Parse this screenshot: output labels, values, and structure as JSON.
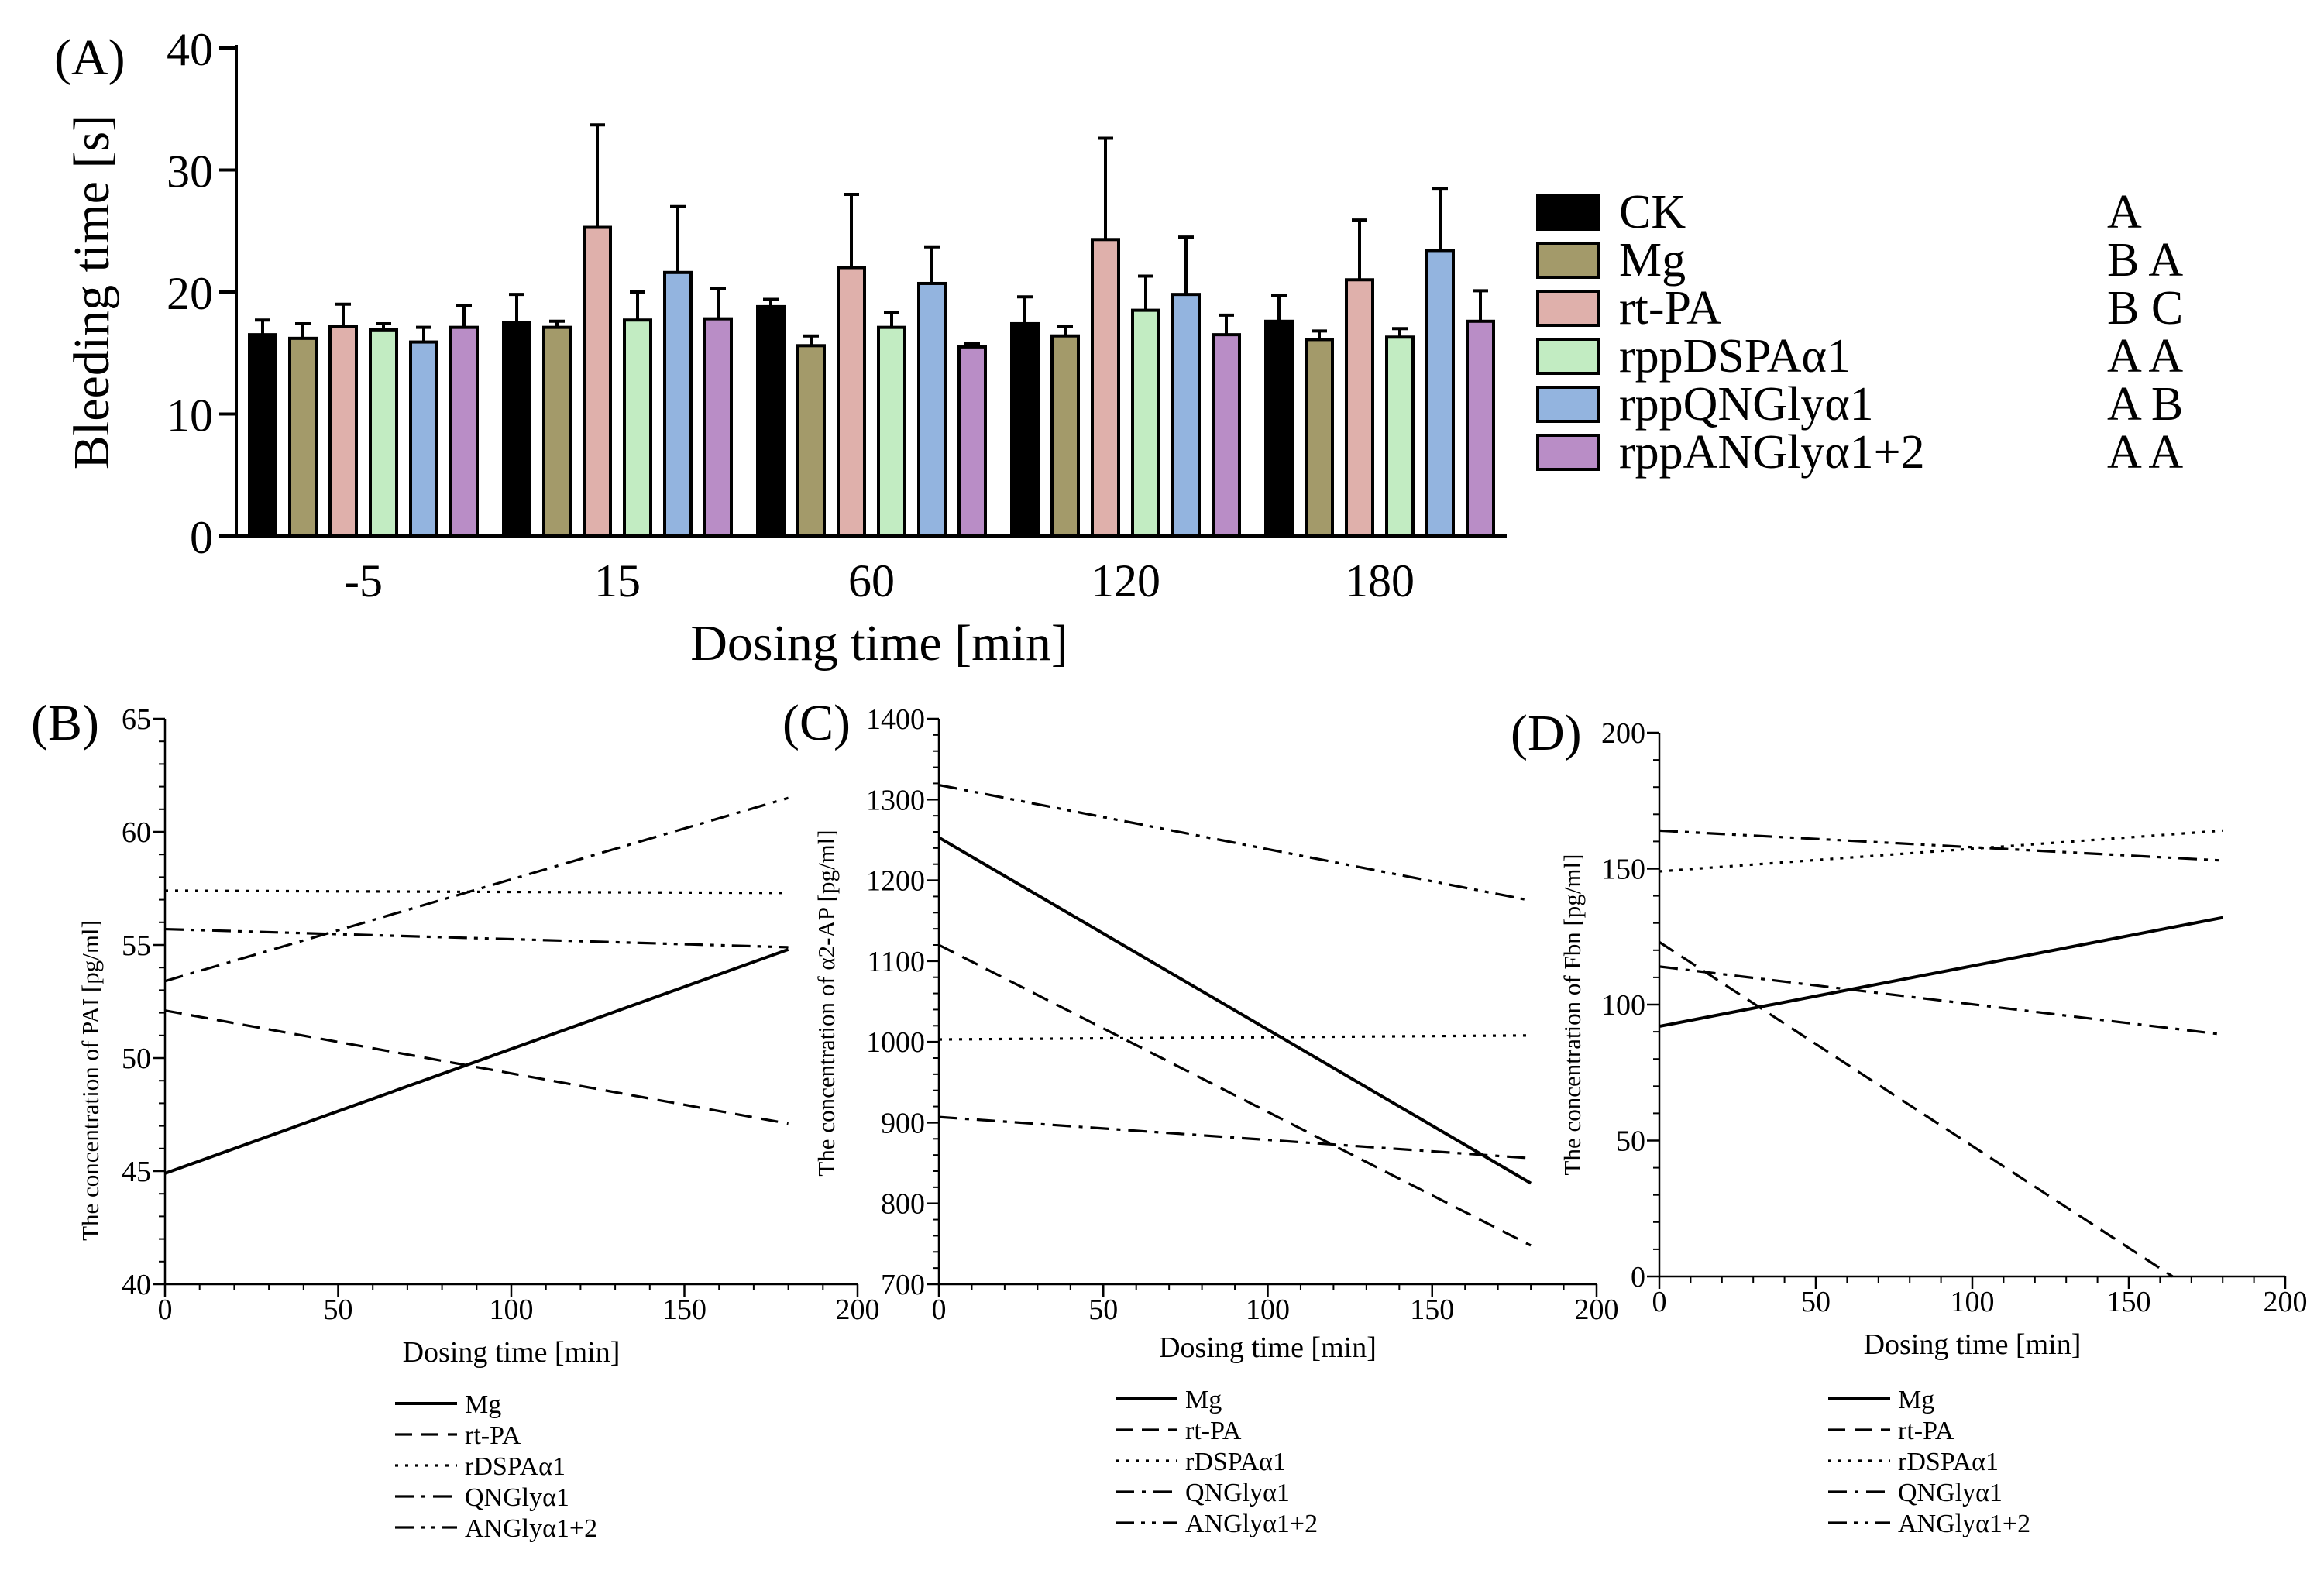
{
  "panels": {
    "A": {
      "tag": "(A)"
    },
    "B": {
      "tag": "(B)"
    },
    "C": {
      "tag": "(C)"
    },
    "D": {
      "tag": "(D)"
    }
  },
  "colors": {
    "CK": "#000000",
    "Mg": "#a39a6a",
    "rt-PA": "#dfb0ab",
    "rppDSPAα1": "#c2ecc2",
    "rppQNGlyα1": "#93b4df",
    "rppANGlyα1+2": "#b98dc6"
  },
  "chart_data": [
    {
      "id": "A",
      "type": "bar",
      "title": "",
      "xlabel": "Dosing time [min]",
      "ylabel": "Bleeding time [s]",
      "ylim": [
        0,
        40
      ],
      "yticks": [
        0,
        10,
        20,
        30,
        40
      ],
      "categories": [
        "-5",
        "15",
        "60",
        "120",
        "180"
      ],
      "series": [
        {
          "name": "CK",
          "letters": "A",
          "values": [
            16.5,
            17.5,
            18.8,
            17.4,
            17.6
          ],
          "errors": [
            1.2,
            2.3,
            0.6,
            2.2,
            2.1
          ]
        },
        {
          "name": "Mg",
          "letters": "B A",
          "values": [
            16.2,
            17.1,
            15.6,
            16.4,
            16.1
          ],
          "errors": [
            1.2,
            0.5,
            0.8,
            0.8,
            0.7
          ]
        },
        {
          "name": "rt-PA",
          "letters": "B C",
          "values": [
            17.2,
            25.3,
            22.0,
            24.3,
            21.0
          ],
          "errors": [
            1.8,
            8.4,
            6.0,
            8.3,
            4.9
          ]
        },
        {
          "name": "rppDSPAα1",
          "letters": "A A",
          "values": [
            16.9,
            17.7,
            17.1,
            18.5,
            16.3
          ],
          "errors": [
            0.5,
            2.3,
            1.2,
            2.8,
            0.7
          ]
        },
        {
          "name": "rppQNGlyα1",
          "letters": "A B",
          "values": [
            15.9,
            21.6,
            20.7,
            19.8,
            23.4
          ],
          "errors": [
            1.2,
            5.4,
            3.0,
            4.7,
            5.1
          ]
        },
        {
          "name": "rppANGlyα1+2",
          "letters": "A A",
          "values": [
            17.1,
            17.8,
            15.5,
            16.5,
            17.6
          ],
          "errors": [
            1.8,
            2.5,
            0.3,
            1.6,
            2.5
          ]
        }
      ]
    },
    {
      "id": "B",
      "type": "line",
      "title": "",
      "xlabel": "Dosing time [min]",
      "ylabel": "The concentration of  PAI  [pg/ml]",
      "xlim": [
        0,
        200
      ],
      "ylim": [
        40,
        65
      ],
      "xticks": [
        0,
        50,
        100,
        150,
        200
      ],
      "yticks": [
        40,
        45,
        50,
        55,
        60,
        65
      ],
      "legend_position": "below",
      "series": [
        {
          "name": "Mg",
          "dash": "solid",
          "x": [
            0,
            180
          ],
          "y": [
            44.9,
            54.8
          ]
        },
        {
          "name": "rt-PA",
          "dash": "dash",
          "x": [
            0,
            180
          ],
          "y": [
            52.1,
            47.1
          ]
        },
        {
          "name": "rDSPAα1",
          "dash": "dot",
          "x": [
            0,
            180
          ],
          "y": [
            57.4,
            57.3
          ]
        },
        {
          "name": "QNGlyα1",
          "dash": "dashdot",
          "x": [
            0,
            180
          ],
          "y": [
            53.4,
            61.5
          ]
        },
        {
          "name": "ANGlyα1+2",
          "dash": "dashdotdot",
          "x": [
            0,
            180
          ],
          "y": [
            55.7,
            54.9
          ]
        }
      ]
    },
    {
      "id": "C",
      "type": "line",
      "title": "",
      "xlabel": "Dosing time [min]",
      "ylabel": "The concentration of α2-AP [pg/ml]",
      "xlim": [
        0,
        200
      ],
      "ylim": [
        700,
        1400
      ],
      "xticks": [
        0,
        50,
        100,
        150,
        200
      ],
      "yticks": [
        700,
        800,
        900,
        1000,
        1100,
        1200,
        1300,
        1400
      ],
      "legend_position": "below",
      "series": [
        {
          "name": "Mg",
          "dash": "solid",
          "x": [
            0,
            180
          ],
          "y": [
            1253,
            825
          ]
        },
        {
          "name": "rt-PA",
          "dash": "dash",
          "x": [
            0,
            180
          ],
          "y": [
            1120,
            748
          ]
        },
        {
          "name": "rDSPAα1",
          "dash": "dot",
          "x": [
            0,
            180
          ],
          "y": [
            1003,
            1008
          ]
        },
        {
          "name": "QNGlyα1",
          "dash": "dashdot",
          "x": [
            0,
            180
          ],
          "y": [
            907,
            856
          ]
        },
        {
          "name": "ANGlyα1+2",
          "dash": "dashdotdot",
          "x": [
            0,
            180
          ],
          "y": [
            1318,
            1175
          ]
        }
      ]
    },
    {
      "id": "D",
      "type": "line",
      "title": "",
      "xlabel": "Dosing time [min]",
      "ylabel": "The concentration of  Fbn  [pg/ml]",
      "xlim": [
        0,
        200
      ],
      "ylim": [
        0,
        200
      ],
      "xticks": [
        0,
        50,
        100,
        150,
        200
      ],
      "yticks": [
        0,
        50,
        100,
        150,
        200
      ],
      "legend_position": "below",
      "series": [
        {
          "name": "Mg",
          "dash": "solid",
          "x": [
            0,
            180
          ],
          "y": [
            92,
            132
          ]
        },
        {
          "name": "rt-PA",
          "dash": "dash",
          "x": [
            0,
            164
          ],
          "y": [
            123,
            0
          ]
        },
        {
          "name": "rDSPAα1",
          "dash": "dot",
          "x": [
            0,
            180
          ],
          "y": [
            149,
            164
          ]
        },
        {
          "name": "QNGlyα1",
          "dash": "dashdot",
          "x": [
            0,
            180
          ],
          "y": [
            114,
            89
          ]
        },
        {
          "name": "ANGlyα1+2",
          "dash": "dashdotdot",
          "x": [
            0,
            180
          ],
          "y": [
            164,
            153
          ]
        }
      ]
    }
  ]
}
